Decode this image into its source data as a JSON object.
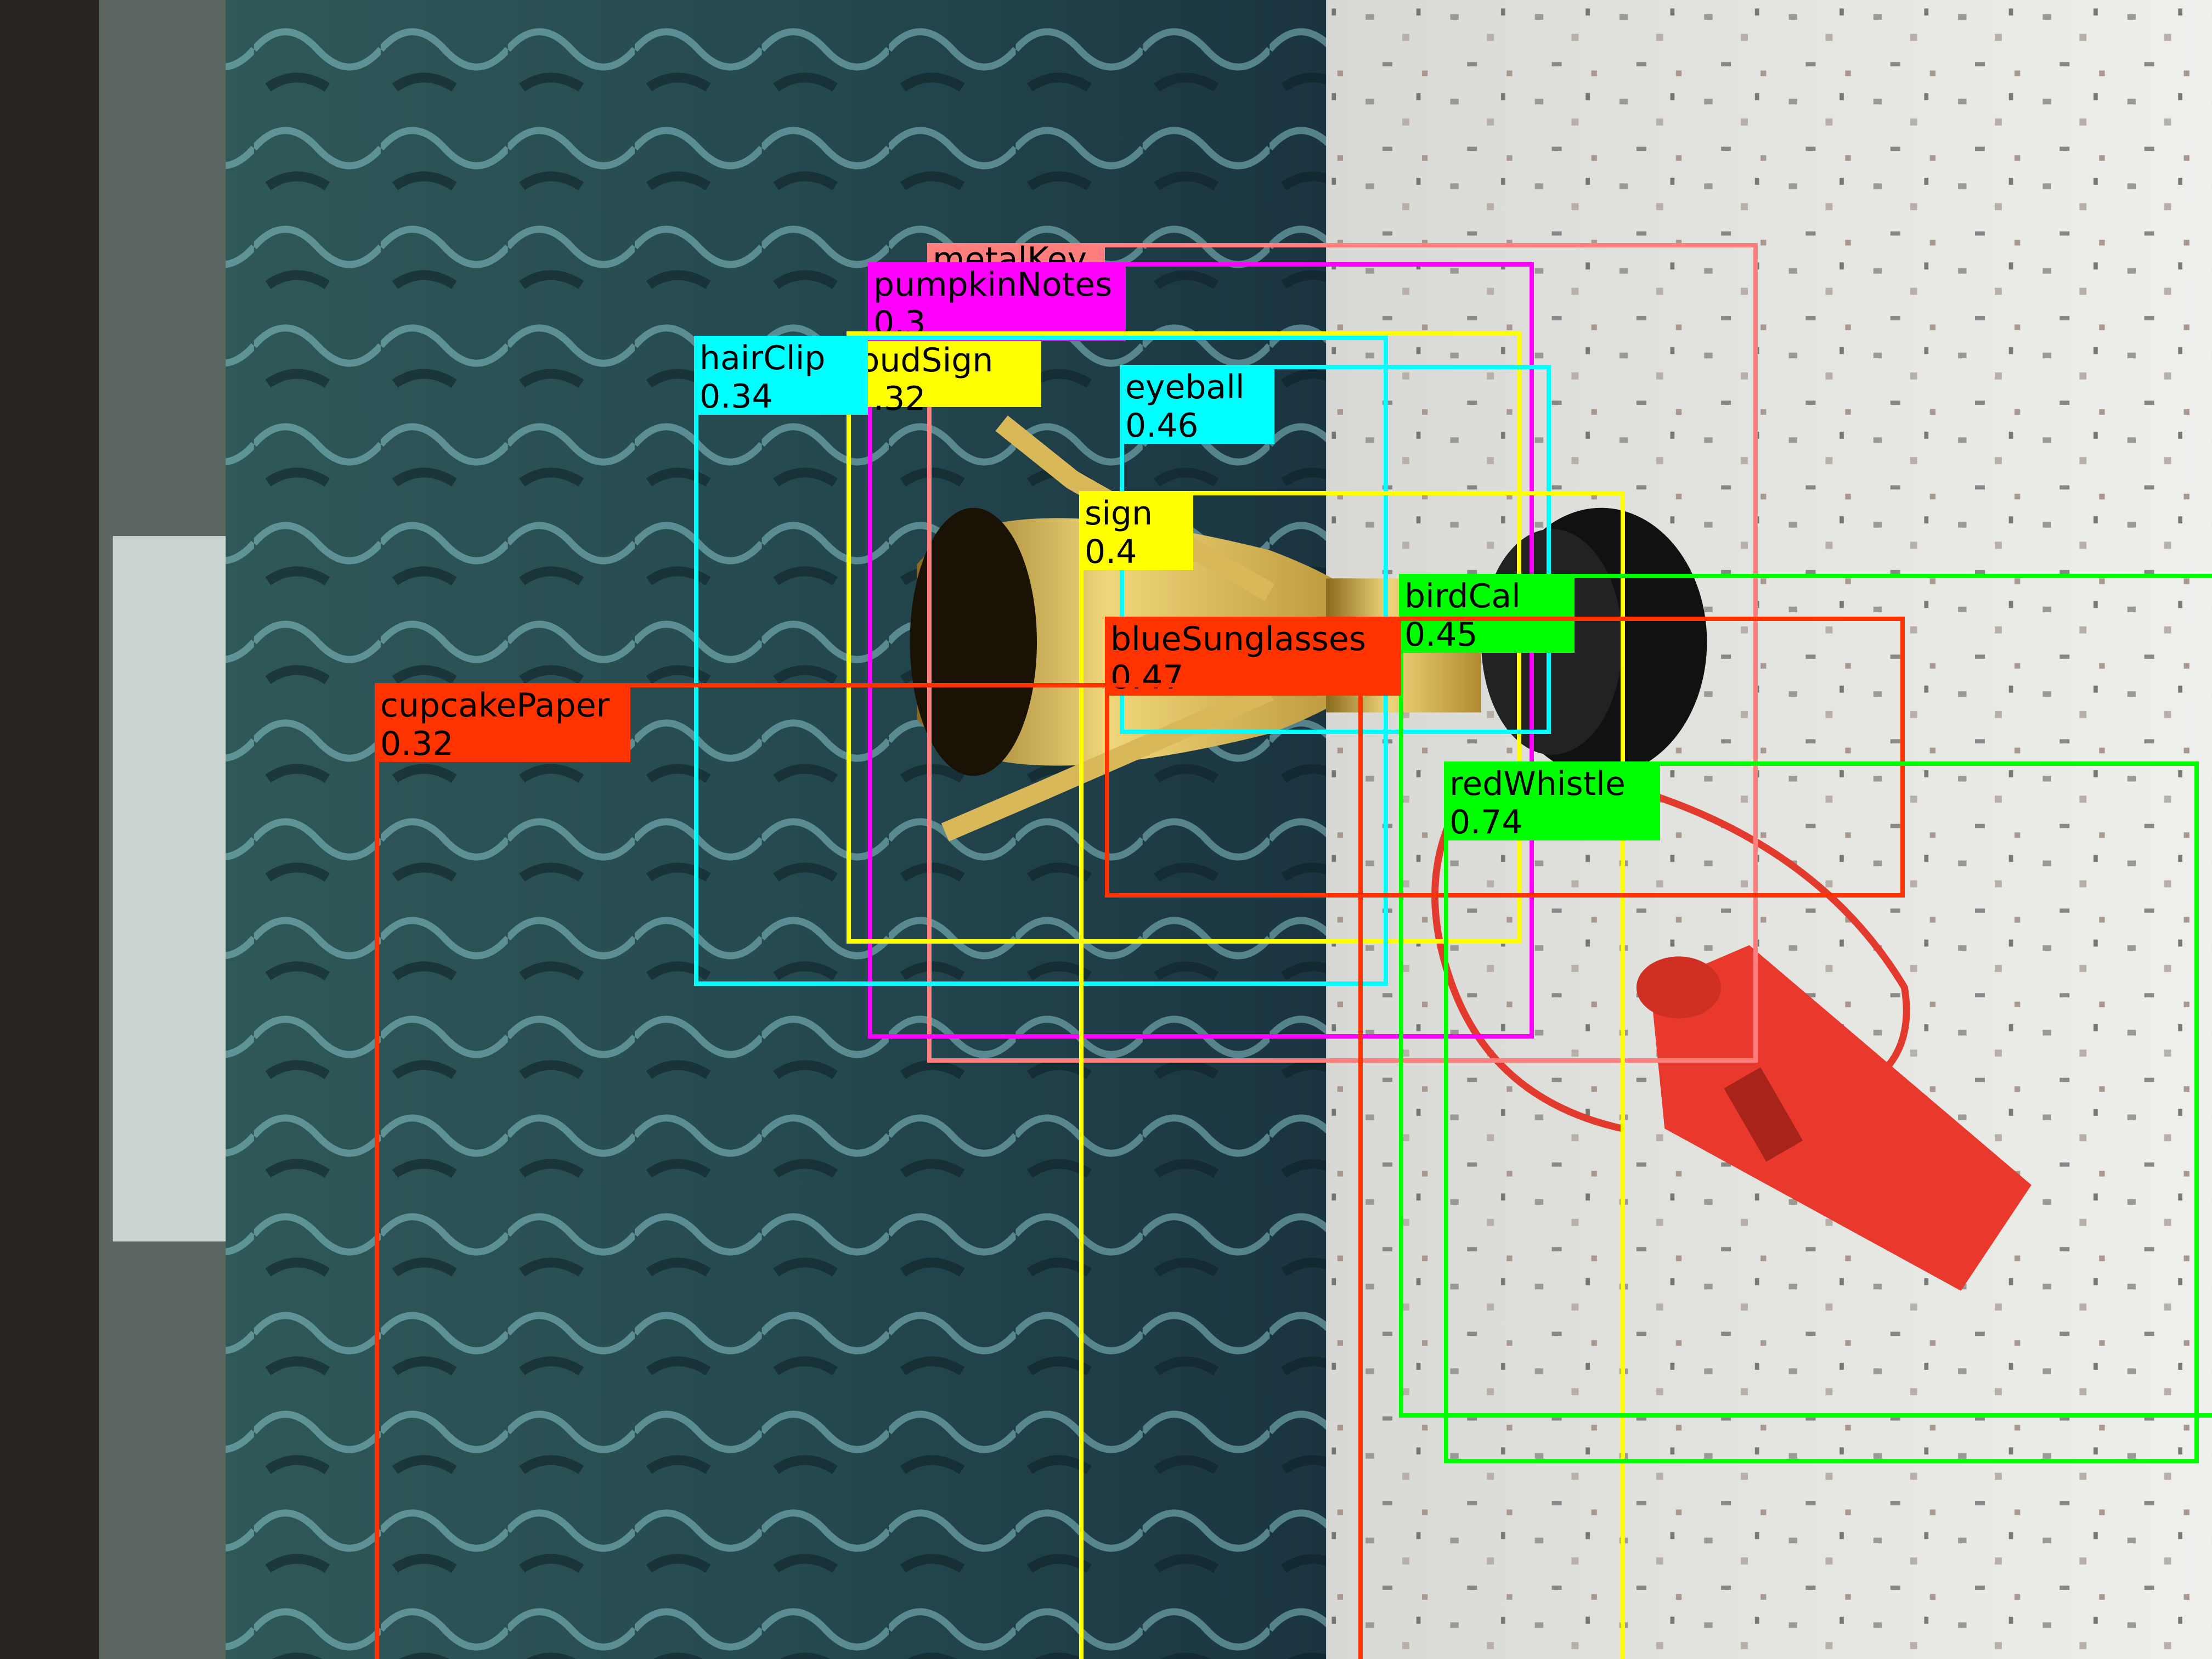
{
  "detections": [
    {
      "label": "metalKey",
      "score": "",
      "color": "#ff7f7f"
    },
    {
      "label": "pumpkinNotes",
      "score": "0.3",
      "color": "#ff00ff"
    },
    {
      "label": "loudSign",
      "score": ".32",
      "color": "#ffff00"
    },
    {
      "label": "hairClip",
      "score": "0.34",
      "color": "#00ffff"
    },
    {
      "label": "eyeball",
      "score": "0.46",
      "color": "#00ffff"
    },
    {
      "label": "sign",
      "score": "0.4",
      "color": "#ffff00"
    },
    {
      "label": "birdCal",
      "score": "0.45",
      "color": "#00ff00"
    },
    {
      "label": "blueSunglasses",
      "score": "0.47",
      "color": "#ff3300"
    },
    {
      "label": "cupcakePaper",
      "score": "0.32",
      "color": "#ff3300"
    },
    {
      "label": "redWhistle",
      "score": "0.74",
      "color": "#00ff00"
    }
  ]
}
